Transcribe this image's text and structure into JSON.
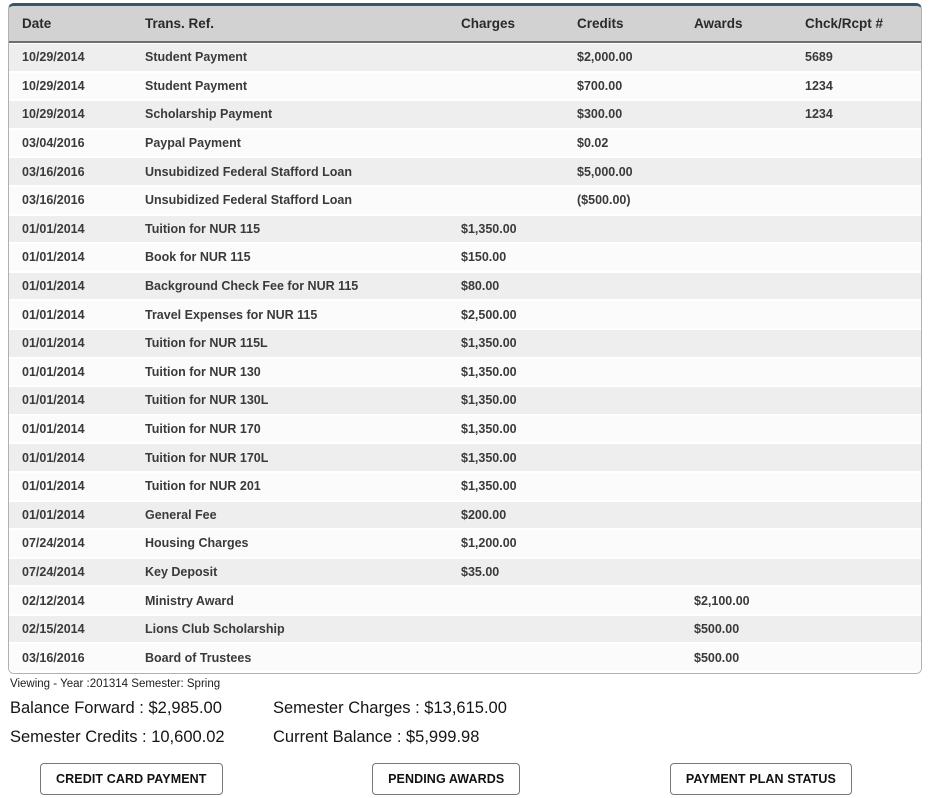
{
  "table": {
    "headers": [
      "Date",
      "Trans. Ref.",
      "Charges",
      "Credits",
      "Awards",
      "Chck/Rcpt #"
    ],
    "rows": [
      [
        "10/29/2014",
        "Student Payment",
        "",
        "$2,000.00",
        "",
        "5689"
      ],
      [
        "10/29/2014",
        "Student Payment",
        "",
        "$700.00",
        "",
        "1234"
      ],
      [
        "10/29/2014",
        "Scholarship Payment",
        "",
        "$300.00",
        "",
        "1234"
      ],
      [
        "03/04/2016",
        "Paypal Payment",
        "",
        "$0.02",
        "",
        ""
      ],
      [
        "03/16/2016",
        "Unsubidized Federal Stafford Loan",
        "",
        "$5,000.00",
        "",
        ""
      ],
      [
        "03/16/2016",
        "Unsubidized Federal Stafford Loan",
        "",
        "($500.00)",
        "",
        ""
      ],
      [
        "01/01/2014",
        "Tuition for NUR 115",
        "$1,350.00",
        "",
        "",
        ""
      ],
      [
        "01/01/2014",
        "Book for NUR 115",
        "$150.00",
        "",
        "",
        ""
      ],
      [
        "01/01/2014",
        "Background Check Fee for NUR 115",
        "$80.00",
        "",
        "",
        ""
      ],
      [
        "01/01/2014",
        "Travel Expenses for NUR 115",
        "$2,500.00",
        "",
        "",
        ""
      ],
      [
        "01/01/2014",
        "Tuition for NUR 115L",
        "$1,350.00",
        "",
        "",
        ""
      ],
      [
        "01/01/2014",
        "Tuition for NUR 130",
        "$1,350.00",
        "",
        "",
        ""
      ],
      [
        "01/01/2014",
        "Tuition for NUR 130L",
        "$1,350.00",
        "",
        "",
        ""
      ],
      [
        "01/01/2014",
        "Tuition for NUR 170",
        "$1,350.00",
        "",
        "",
        ""
      ],
      [
        "01/01/2014",
        "Tuition for NUR 170L",
        "$1,350.00",
        "",
        "",
        ""
      ],
      [
        "01/01/2014",
        "Tuition for NUR 201",
        "$1,350.00",
        "",
        "",
        ""
      ],
      [
        "01/01/2014",
        "General Fee",
        "$200.00",
        "",
        "",
        ""
      ],
      [
        "07/24/2014",
        "Housing Charges",
        "$1,200.00",
        "",
        "",
        ""
      ],
      [
        "07/24/2014",
        "Key Deposit",
        "$35.00",
        "",
        "",
        ""
      ],
      [
        "02/12/2014",
        "Ministry Award",
        "",
        "",
        "$2,100.00",
        ""
      ],
      [
        "02/15/2014",
        "Lions Club Scholarship",
        "",
        "",
        "$500.00",
        ""
      ],
      [
        "03/16/2016",
        "Board of Trustees",
        "",
        "",
        "$500.00",
        ""
      ]
    ]
  },
  "viewing_line": "Viewing - Year :201314 Semester: Spring",
  "summary": {
    "balance_forward": "Balance Forward : $2,985.00",
    "semester_charges": "Semester Charges : $13,615.00",
    "semester_credits": "Semester Credits : 10,600.02",
    "current_balance": "Current Balance : $5,999.98"
  },
  "buttons": {
    "credit_card_payment": "CREDIT CARD PAYMENT",
    "pending_awards": "PENDING AWARDS",
    "payment_plan_status": "PAYMENT PLAN STATUS"
  },
  "colors": {
    "header_bg": "#d2d2d2",
    "row_alt_bg": "#eeeeee",
    "top_border": "#35566b"
  }
}
